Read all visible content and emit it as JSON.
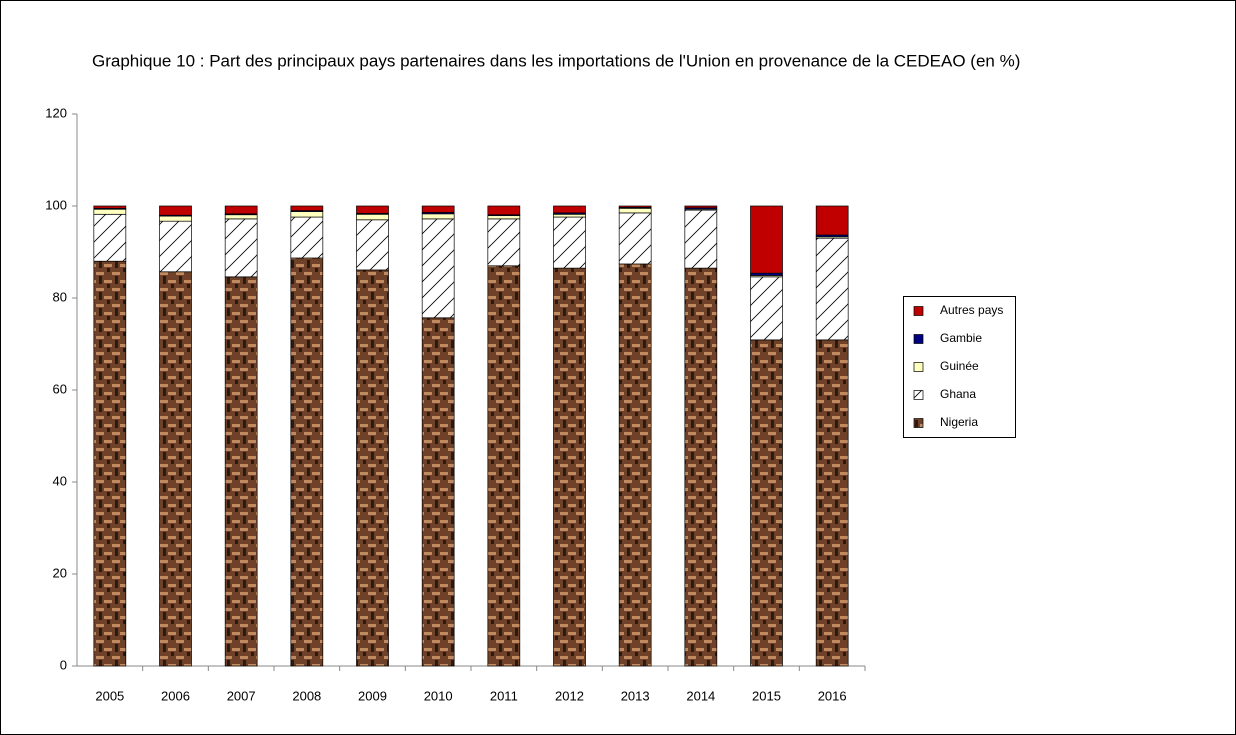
{
  "chart_data": {
    "type": "stacked_bar",
    "title": "Graphique 10 : Part des principaux pays partenaires dans les importations de l'Union en provenance de la CEDEAO (en %)",
    "categories": [
      "2005",
      "2006",
      "2007",
      "2008",
      "2009",
      "2010",
      "2011",
      "2012",
      "2013",
      "2014",
      "2015",
      "2016"
    ],
    "series": [
      {
        "name": "Nigeria",
        "color": "#6e4128",
        "values": [
          88.0,
          85.7,
          84.6,
          88.7,
          86.1,
          75.7,
          87.0,
          86.5,
          87.4,
          86.5,
          70.9,
          70.9
        ]
      },
      {
        "name": "Ghana",
        "color": "#ffffff",
        "values": [
          10.2,
          11.0,
          12.6,
          8.9,
          10.9,
          21.5,
          10.2,
          11.1,
          11.1,
          12.6,
          13.7,
          22.1
        ]
      },
      {
        "name": "Guinée",
        "color": "#ffffc0",
        "values": [
          1.1,
          1.1,
          0.9,
          1.2,
          1.2,
          1.1,
          0.7,
          0.6,
          1.0,
          0.2,
          0.3,
          0.3
        ]
      },
      {
        "name": "Gambie",
        "color": "#000080",
        "values": [
          0.2,
          0.2,
          0.2,
          0.2,
          0.2,
          0.3,
          0.2,
          0.3,
          0.2,
          0.3,
          0.5,
          0.4
        ]
      },
      {
        "name": "Autres pays",
        "color": "#c00000",
        "values": [
          0.5,
          2.0,
          1.7,
          1.0,
          1.6,
          1.4,
          1.9,
          1.5,
          0.3,
          0.4,
          14.6,
          6.3
        ]
      }
    ],
    "ylim": [
      0,
      120
    ],
    "yticks": [
      0,
      20,
      40,
      60,
      80,
      100,
      120
    ],
    "legend": "right"
  }
}
